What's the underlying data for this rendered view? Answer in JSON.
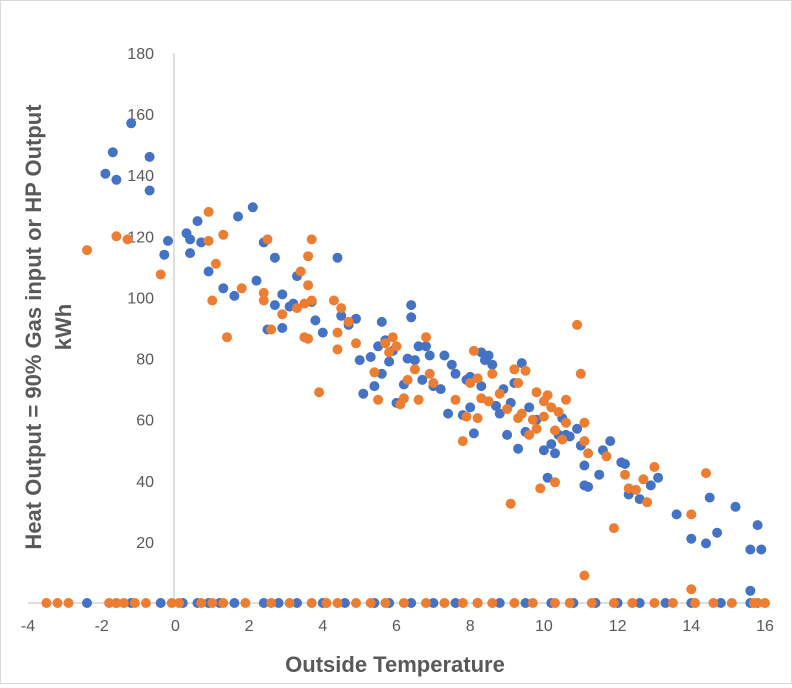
{
  "chart_data": {
    "type": "scatter",
    "title": "",
    "xlabel": "Outside Temperature",
    "ylabel": "Heat Output = 90% Gas input or HP Output kWh",
    "ylabel_lines": [
      "Heat Output = 90% Gas input or HP Output",
      "kWh"
    ],
    "xlim": [
      -4,
      16
    ],
    "ylim": [
      0,
      180
    ],
    "x_ticks": [
      "-4",
      "-2",
      "0",
      "2",
      "4",
      "6",
      "8",
      "10",
      "12",
      "14",
      "16"
    ],
    "y_ticks": [
      "20",
      "40",
      "60",
      "80",
      "100",
      "120",
      "140",
      "160",
      "180"
    ],
    "grid": false,
    "legend": "none",
    "series": [
      {
        "color": "#4472C4",
        "points": [
          [
            -2.4,
            0
          ],
          [
            -1.6,
            0
          ],
          [
            -1.2,
            0
          ],
          [
            -0.4,
            0
          ],
          [
            0.2,
            0
          ],
          [
            0.6,
            0
          ],
          [
            0.9,
            0
          ],
          [
            1.2,
            0
          ],
          [
            1.6,
            0
          ],
          [
            2.4,
            0
          ],
          [
            2.8,
            0
          ],
          [
            3.3,
            0
          ],
          [
            4.0,
            0
          ],
          [
            4.6,
            0
          ],
          [
            5.4,
            0
          ],
          [
            5.8,
            0
          ],
          [
            6.4,
            0
          ],
          [
            7.0,
            0
          ],
          [
            7.6,
            0
          ],
          [
            8.2,
            0
          ],
          [
            8.8,
            0
          ],
          [
            9.5,
            0
          ],
          [
            10.2,
            0
          ],
          [
            10.8,
            0
          ],
          [
            11.4,
            0
          ],
          [
            12.0,
            0
          ],
          [
            12.6,
            0
          ],
          [
            13.3,
            0
          ],
          [
            14.0,
            0
          ],
          [
            14.8,
            0
          ],
          [
            15.6,
            0
          ],
          [
            15.8,
            0
          ],
          [
            -1.9,
            140.5
          ],
          [
            -1.7,
            147.5
          ],
          [
            -1.6,
            138.5
          ],
          [
            -1.2,
            157
          ],
          [
            -0.7,
            146
          ],
          [
            -0.7,
            135
          ],
          [
            -0.3,
            114
          ],
          [
            -0.2,
            118.5
          ],
          [
            0.3,
            121
          ],
          [
            0.4,
            119
          ],
          [
            0.4,
            114.5
          ],
          [
            0.6,
            125
          ],
          [
            0.7,
            118
          ],
          [
            0.9,
            108.5
          ],
          [
            1.3,
            103
          ],
          [
            1.6,
            100.5
          ],
          [
            1.7,
            126.5
          ],
          [
            2.1,
            129.5
          ],
          [
            2.2,
            105.5
          ],
          [
            2.4,
            118
          ],
          [
            2.5,
            89.5
          ],
          [
            2.7,
            113
          ],
          [
            2.7,
            97.5
          ],
          [
            2.9,
            101
          ],
          [
            2.9,
            90
          ],
          [
            3.1,
            97
          ],
          [
            3.2,
            98
          ],
          [
            3.3,
            107
          ],
          [
            3.7,
            98.5
          ],
          [
            3.8,
            92.5
          ],
          [
            4.0,
            88.5
          ],
          [
            4.4,
            113
          ],
          [
            4.5,
            94
          ],
          [
            4.7,
            91
          ],
          [
            4.9,
            93
          ],
          [
            5.0,
            79.5
          ],
          [
            5.1,
            68.5
          ],
          [
            5.3,
            80.5
          ],
          [
            5.4,
            71
          ],
          [
            5.5,
            84
          ],
          [
            5.6,
            92
          ],
          [
            5.6,
            75
          ],
          [
            5.7,
            86
          ],
          [
            5.8,
            79
          ],
          [
            5.9,
            82.5
          ],
          [
            6.0,
            65.5
          ],
          [
            6.2,
            71.5
          ],
          [
            6.3,
            80
          ],
          [
            6.4,
            93.5
          ],
          [
            6.4,
            97.5
          ],
          [
            6.5,
            79.5
          ],
          [
            6.6,
            84
          ],
          [
            6.7,
            73
          ],
          [
            6.8,
            84
          ],
          [
            6.9,
            81
          ],
          [
            7.0,
            71
          ],
          [
            7.2,
            70
          ],
          [
            7.3,
            81
          ],
          [
            7.4,
            62
          ],
          [
            7.5,
            78
          ],
          [
            7.6,
            75
          ],
          [
            7.8,
            61.5
          ],
          [
            7.9,
            73
          ],
          [
            8.0,
            74
          ],
          [
            8.0,
            64
          ],
          [
            8.1,
            55.5
          ],
          [
            8.3,
            82
          ],
          [
            8.3,
            71
          ],
          [
            8.4,
            79.5
          ],
          [
            8.5,
            81
          ],
          [
            8.6,
            78
          ],
          [
            8.7,
            64.5
          ],
          [
            8.8,
            62
          ],
          [
            8.9,
            70
          ],
          [
            9.0,
            55
          ],
          [
            9.1,
            65.5
          ],
          [
            9.2,
            72
          ],
          [
            9.3,
            50.5
          ],
          [
            9.4,
            78.5
          ],
          [
            9.5,
            56
          ],
          [
            9.6,
            64
          ],
          [
            9.8,
            60
          ],
          [
            10.0,
            50
          ],
          [
            10.1,
            41
          ],
          [
            10.2,
            52
          ],
          [
            10.3,
            49
          ],
          [
            10.4,
            55
          ],
          [
            10.5,
            60.5
          ],
          [
            10.6,
            55
          ],
          [
            10.7,
            54.5
          ],
          [
            10.9,
            57
          ],
          [
            11.0,
            51.5
          ],
          [
            11.1,
            45
          ],
          [
            11.1,
            38.5
          ],
          [
            11.2,
            38
          ],
          [
            11.5,
            42
          ],
          [
            11.6,
            50
          ],
          [
            11.8,
            53
          ],
          [
            12.1,
            46
          ],
          [
            12.2,
            45.5
          ],
          [
            12.3,
            35.5
          ],
          [
            12.6,
            34
          ],
          [
            12.9,
            38.5
          ],
          [
            13.1,
            41
          ],
          [
            13.6,
            29
          ],
          [
            14.0,
            21
          ],
          [
            14.4,
            19.5
          ],
          [
            14.5,
            34.5
          ],
          [
            14.7,
            23
          ],
          [
            15.2,
            31.5
          ],
          [
            15.6,
            17.5
          ],
          [
            15.6,
            4
          ],
          [
            15.8,
            25.5
          ],
          [
            15.9,
            17.5
          ]
        ]
      },
      {
        "color": "#ED7D31",
        "points": [
          [
            -3.5,
            0
          ],
          [
            -3.2,
            0
          ],
          [
            -2.9,
            0
          ],
          [
            -1.8,
            0
          ],
          [
            -1.6,
            0
          ],
          [
            -1.4,
            0
          ],
          [
            -1.1,
            0
          ],
          [
            -0.8,
            0
          ],
          [
            -0.1,
            0
          ],
          [
            0.1,
            0
          ],
          [
            0.7,
            0
          ],
          [
            1.0,
            0
          ],
          [
            1.3,
            0
          ],
          [
            1.9,
            0
          ],
          [
            2.6,
            0
          ],
          [
            3.1,
            0
          ],
          [
            3.7,
            0
          ],
          [
            4.1,
            0
          ],
          [
            4.4,
            0
          ],
          [
            4.9,
            0
          ],
          [
            5.3,
            0
          ],
          [
            5.7,
            0
          ],
          [
            6.2,
            0
          ],
          [
            6.8,
            0
          ],
          [
            7.3,
            0
          ],
          [
            7.8,
            0
          ],
          [
            8.2,
            0
          ],
          [
            8.6,
            0
          ],
          [
            9.2,
            0
          ],
          [
            9.7,
            0
          ],
          [
            10.3,
            0
          ],
          [
            10.7,
            0
          ],
          [
            11.3,
            0
          ],
          [
            11.9,
            0
          ],
          [
            12.4,
            0
          ],
          [
            13.0,
            0
          ],
          [
            13.5,
            0
          ],
          [
            14.1,
            0
          ],
          [
            14.6,
            0
          ],
          [
            15.1,
            0
          ],
          [
            15.8,
            0
          ],
          [
            16.0,
            0
          ],
          [
            -2.4,
            115.5
          ],
          [
            -1.6,
            120
          ],
          [
            -1.3,
            119
          ],
          [
            -0.4,
            107.5
          ],
          [
            0.9,
            128
          ],
          [
            0.9,
            118.5
          ],
          [
            1.0,
            99
          ],
          [
            1.1,
            111
          ],
          [
            1.3,
            120.5
          ],
          [
            1.4,
            87
          ],
          [
            1.8,
            103
          ],
          [
            2.4,
            101.5
          ],
          [
            2.4,
            99
          ],
          [
            2.5,
            119
          ],
          [
            2.6,
            89.5
          ],
          [
            2.9,
            94.5
          ],
          [
            3.3,
            96.5
          ],
          [
            3.4,
            108.5
          ],
          [
            3.5,
            98
          ],
          [
            3.5,
            87
          ],
          [
            3.6,
            113.5
          ],
          [
            3.6,
            104
          ],
          [
            3.6,
            86.5
          ],
          [
            3.7,
            119
          ],
          [
            3.7,
            99
          ],
          [
            3.9,
            69
          ],
          [
            4.3,
            99
          ],
          [
            4.4,
            88.5
          ],
          [
            4.4,
            83
          ],
          [
            4.5,
            96.5
          ],
          [
            4.7,
            92
          ],
          [
            4.9,
            85
          ],
          [
            5.4,
            75.5
          ],
          [
            5.5,
            66.5
          ],
          [
            5.7,
            85
          ],
          [
            5.8,
            82
          ],
          [
            5.9,
            87
          ],
          [
            6.0,
            84
          ],
          [
            6.1,
            65
          ],
          [
            6.2,
            67
          ],
          [
            6.3,
            73
          ],
          [
            6.5,
            76.5
          ],
          [
            6.6,
            66.5
          ],
          [
            6.8,
            87
          ],
          [
            6.9,
            75
          ],
          [
            7.0,
            72
          ],
          [
            7.6,
            66.5
          ],
          [
            7.8,
            53
          ],
          [
            7.9,
            61
          ],
          [
            8.0,
            72
          ],
          [
            8.1,
            82.5
          ],
          [
            8.2,
            73.5
          ],
          [
            8.2,
            60.5
          ],
          [
            8.3,
            67
          ],
          [
            8.5,
            66
          ],
          [
            8.6,
            75
          ],
          [
            8.8,
            68.5
          ],
          [
            9.0,
            63.5
          ],
          [
            9.1,
            32.5
          ],
          [
            9.2,
            76.5
          ],
          [
            9.3,
            72
          ],
          [
            9.3,
            60.5
          ],
          [
            9.4,
            62
          ],
          [
            9.5,
            76
          ],
          [
            9.6,
            55
          ],
          [
            9.7,
            60
          ],
          [
            9.8,
            69
          ],
          [
            9.8,
            57
          ],
          [
            9.9,
            37.5
          ],
          [
            10.0,
            66
          ],
          [
            10.0,
            61
          ],
          [
            10.1,
            68
          ],
          [
            10.2,
            64
          ],
          [
            10.3,
            56.5
          ],
          [
            10.3,
            39.5
          ],
          [
            10.4,
            62.5
          ],
          [
            10.5,
            53.5
          ],
          [
            10.6,
            66.5
          ],
          [
            10.6,
            59
          ],
          [
            10.9,
            91
          ],
          [
            11.0,
            75
          ],
          [
            11.1,
            59
          ],
          [
            11.1,
            53
          ],
          [
            11.1,
            9
          ],
          [
            11.2,
            49
          ],
          [
            11.7,
            48
          ],
          [
            11.9,
            24.5
          ],
          [
            12.2,
            42
          ],
          [
            12.3,
            37.5
          ],
          [
            12.5,
            37
          ],
          [
            12.7,
            40.5
          ],
          [
            12.8,
            33
          ],
          [
            13.0,
            44.5
          ],
          [
            14.0,
            29
          ],
          [
            14.0,
            4.5
          ],
          [
            14.4,
            42.5
          ],
          [
            15.7,
            0
          ]
        ]
      }
    ]
  }
}
